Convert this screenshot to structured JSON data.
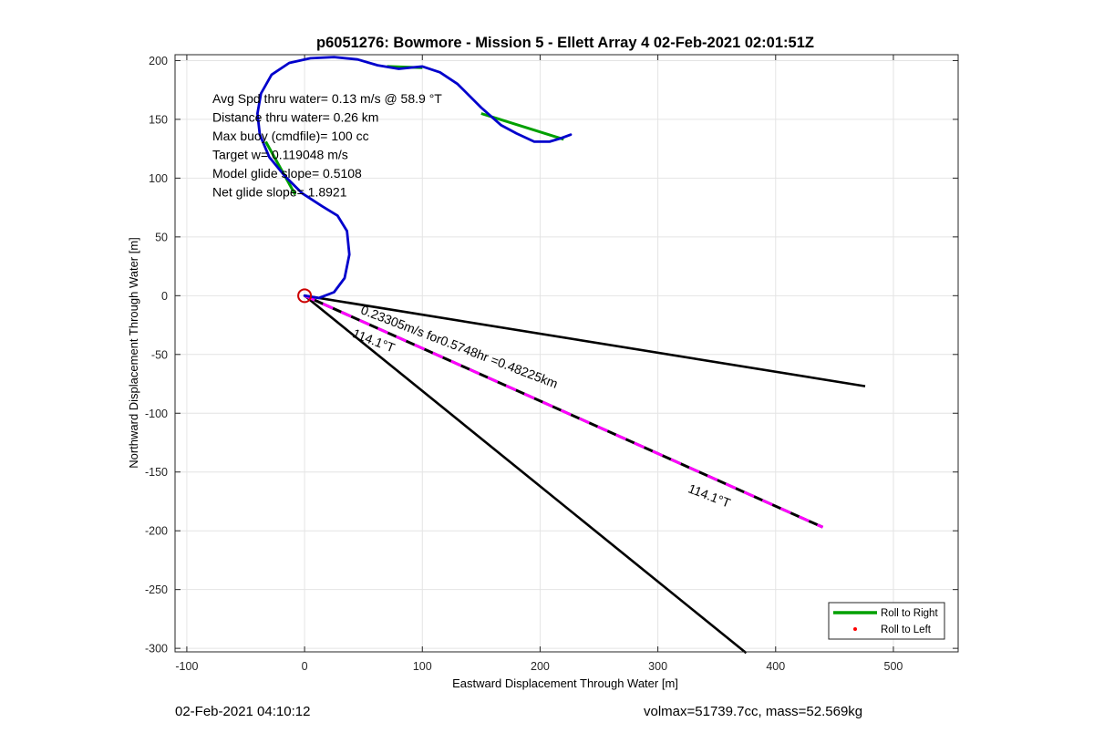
{
  "chart_data": {
    "type": "scatter",
    "title": "p6051276: Bowmore - Mission 5 - Ellett Array 4 02-Feb-2021 02:01:51Z",
    "xlabel": "Eastward Displacement Through Water [m]",
    "ylabel": "Northward Displacement Through Water [m]",
    "xlim": [
      -110,
      555
    ],
    "ylim": [
      -303,
      205
    ],
    "xticks": [
      -100,
      0,
      100,
      200,
      300,
      400,
      500
    ],
    "yticks": [
      -300,
      -250,
      -200,
      -150,
      -100,
      -50,
      0,
      50,
      100,
      150,
      200
    ],
    "grid": true,
    "info_lines": [
      "Avg Spd thru water=  0.13 m/s @  58.9 °T",
      "Distance thru water=  0.26 km",
      "Max buoy (cmdfile)= 100 cc",
      "Target w= 0.119048 m/s",
      "Model glide slope= 0.5108",
      "Net glide slope= 1.8921"
    ],
    "series": [
      {
        "name": "Roll to Right",
        "color": "#00a000",
        "style": "line",
        "segments": [
          [
            [
              -33,
              131
            ],
            [
              -8,
              86
            ]
          ],
          [
            [
              150,
              155
            ],
            [
              220,
              133
            ]
          ],
          [
            [
              70,
              195
            ],
            [
              100,
              194
            ]
          ]
        ]
      },
      {
        "name": "Roll to Left",
        "color": "#ff0000",
        "style": "dot",
        "points": []
      },
      {
        "color": "#0000cc",
        "style": "line",
        "points": [
          [
            0,
            0
          ],
          [
            12,
            -2
          ],
          [
            25,
            3
          ],
          [
            34,
            15
          ],
          [
            38,
            35
          ],
          [
            36,
            55
          ],
          [
            28,
            68
          ],
          [
            15,
            76
          ],
          [
            -2,
            87
          ],
          [
            -17,
            102
          ],
          [
            -30,
            118
          ],
          [
            -38,
            137
          ],
          [
            -40,
            155
          ],
          [
            -37,
            172
          ],
          [
            -28,
            188
          ],
          [
            -13,
            198
          ],
          [
            5,
            202
          ],
          [
            25,
            203
          ],
          [
            45,
            201
          ],
          [
            62,
            196
          ],
          [
            80,
            193
          ],
          [
            100,
            195
          ],
          [
            115,
            190
          ],
          [
            130,
            180
          ],
          [
            150,
            160
          ],
          [
            167,
            145
          ],
          [
            180,
            138
          ],
          [
            195,
            131
          ],
          [
            208,
            131
          ],
          [
            218,
            134
          ],
          [
            226,
            137
          ]
        ]
      },
      {
        "color": "#000000",
        "style": "line",
        "points": [
          [
            0,
            0
          ],
          [
            476,
            -77
          ]
        ]
      },
      {
        "color": "#000000",
        "style": "line",
        "points": [
          [
            0,
            0
          ],
          [
            375,
            -304
          ]
        ]
      },
      {
        "color": "#ff00ff",
        "style": "dashed",
        "points": [
          [
            0,
            0
          ],
          [
            440,
            -197
          ]
        ]
      }
    ],
    "start_marker": {
      "x": 0,
      "y": 0,
      "color": "#cc0000"
    },
    "annotations": [
      {
        "text": "0.23305m/s for0.5748hr =0.48225km",
        "x": 47,
        "y": -15,
        "rotation_deg": 21
      },
      {
        "text": "114.1°T",
        "x": 40,
        "y": -35,
        "rotation_deg": 21
      },
      {
        "text": "114.1°T",
        "x": 325,
        "y": -167,
        "rotation_deg": 21
      }
    ],
    "legend": {
      "position": "bottom-right",
      "entries": [
        {
          "label": "Roll to Right",
          "marker": "line",
          "color": "#00a000"
        },
        {
          "label": "Roll to Left",
          "marker": "dot",
          "color": "#ff0000"
        }
      ]
    }
  },
  "footer": {
    "left": "02-Feb-2021 04:10:12",
    "right": "volmax=51739.7cc, mass=52.569kg"
  }
}
